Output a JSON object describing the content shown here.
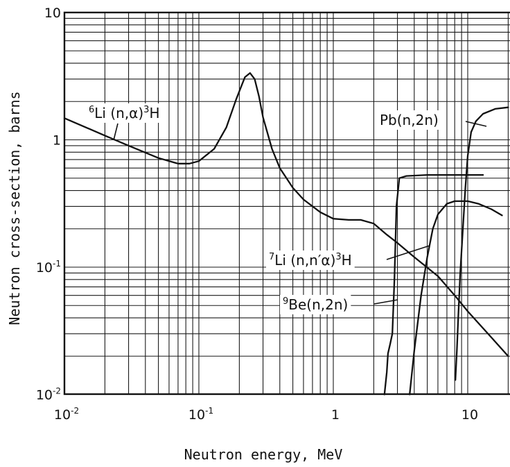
{
  "chart_data": {
    "type": "line",
    "xlabel": "Neutron energy, MeV",
    "ylabel": "Neutron cross-section, barns",
    "xscale": "log",
    "yscale": "log",
    "xlim": [
      0.01,
      20
    ],
    "ylim": [
      0.01,
      10
    ],
    "grid": true,
    "x_ticks": [
      {
        "value": 0.01,
        "base": "10",
        "exp": "-2"
      },
      {
        "value": 0.1,
        "base": "10",
        "exp": "-1"
      },
      {
        "value": 1,
        "base": "1",
        "exp": ""
      },
      {
        "value": 10,
        "base": "10",
        "exp": ""
      }
    ],
    "y_ticks": [
      {
        "value": 10,
        "base": "10",
        "exp": ""
      },
      {
        "value": 1,
        "base": "1",
        "exp": ""
      },
      {
        "value": 0.1,
        "base": "10",
        "exp": "-1"
      },
      {
        "value": 0.01,
        "base": "10",
        "exp": "-2"
      }
    ],
    "series": [
      {
        "key": "li6",
        "label_pre": "6",
        "label_main": "Li (n,α)",
        "label_post_sup": "3",
        "label_post": "H",
        "points": [
          [
            0.01,
            1.48
          ],
          [
            0.02,
            1.08
          ],
          [
            0.03,
            0.9
          ],
          [
            0.05,
            0.72
          ],
          [
            0.07,
            0.65
          ],
          [
            0.085,
            0.65
          ],
          [
            0.1,
            0.68
          ],
          [
            0.13,
            0.85
          ],
          [
            0.16,
            1.25
          ],
          [
            0.19,
            2.1
          ],
          [
            0.22,
            3.1
          ],
          [
            0.24,
            3.35
          ],
          [
            0.26,
            3.0
          ],
          [
            0.28,
            2.2
          ],
          [
            0.3,
            1.5
          ],
          [
            0.35,
            0.85
          ],
          [
            0.4,
            0.6
          ],
          [
            0.5,
            0.42
          ],
          [
            0.6,
            0.34
          ],
          [
            0.8,
            0.27
          ],
          [
            1.0,
            0.24
          ],
          [
            1.3,
            0.235
          ],
          [
            1.6,
            0.235
          ],
          [
            2.0,
            0.22
          ],
          [
            2.5,
            0.18
          ],
          [
            3.0,
            0.155
          ],
          [
            4.0,
            0.12
          ],
          [
            6.0,
            0.085
          ],
          [
            8.0,
            0.06
          ],
          [
            10,
            0.045
          ],
          [
            15,
            0.028
          ],
          [
            20,
            0.02
          ]
        ]
      },
      {
        "key": "be9",
        "label_pre": "9",
        "label_main": "Be(n,2n)",
        "label_post_sup": "",
        "label_post": "",
        "points": [
          [
            2.4,
            0.01
          ],
          [
            2.5,
            0.015
          ],
          [
            2.55,
            0.021
          ],
          [
            2.65,
            0.025
          ],
          [
            2.75,
            0.03
          ],
          [
            2.85,
            0.08
          ],
          [
            2.95,
            0.3
          ],
          [
            3.1,
            0.5
          ],
          [
            3.5,
            0.52
          ],
          [
            5,
            0.53
          ],
          [
            10,
            0.53
          ],
          [
            13,
            0.53
          ]
        ]
      },
      {
        "key": "li7",
        "label_pre": "7",
        "label_main": "Li (n,n′α)",
        "label_post_sup": "3",
        "label_post": "H",
        "points": [
          [
            3.7,
            0.01
          ],
          [
            4.0,
            0.022
          ],
          [
            4.5,
            0.06
          ],
          [
            5.0,
            0.12
          ],
          [
            5.5,
            0.2
          ],
          [
            6,
            0.26
          ],
          [
            7,
            0.315
          ],
          [
            8,
            0.33
          ],
          [
            10,
            0.33
          ],
          [
            12,
            0.315
          ],
          [
            15,
            0.285
          ],
          [
            18,
            0.255
          ]
        ]
      },
      {
        "key": "pb",
        "label_pre": "",
        "label_main": "Pb(n,2n)",
        "label_post_sup": "",
        "label_post": "",
        "points": [
          [
            8.1,
            0.013
          ],
          [
            8.3,
            0.022
          ],
          [
            8.5,
            0.04
          ],
          [
            8.8,
            0.09
          ],
          [
            9.2,
            0.2
          ],
          [
            9.6,
            0.42
          ],
          [
            10,
            0.75
          ],
          [
            10.6,
            1.15
          ],
          [
            11.5,
            1.4
          ],
          [
            13,
            1.6
          ],
          [
            16,
            1.75
          ],
          [
            20,
            1.8
          ]
        ]
      }
    ]
  }
}
